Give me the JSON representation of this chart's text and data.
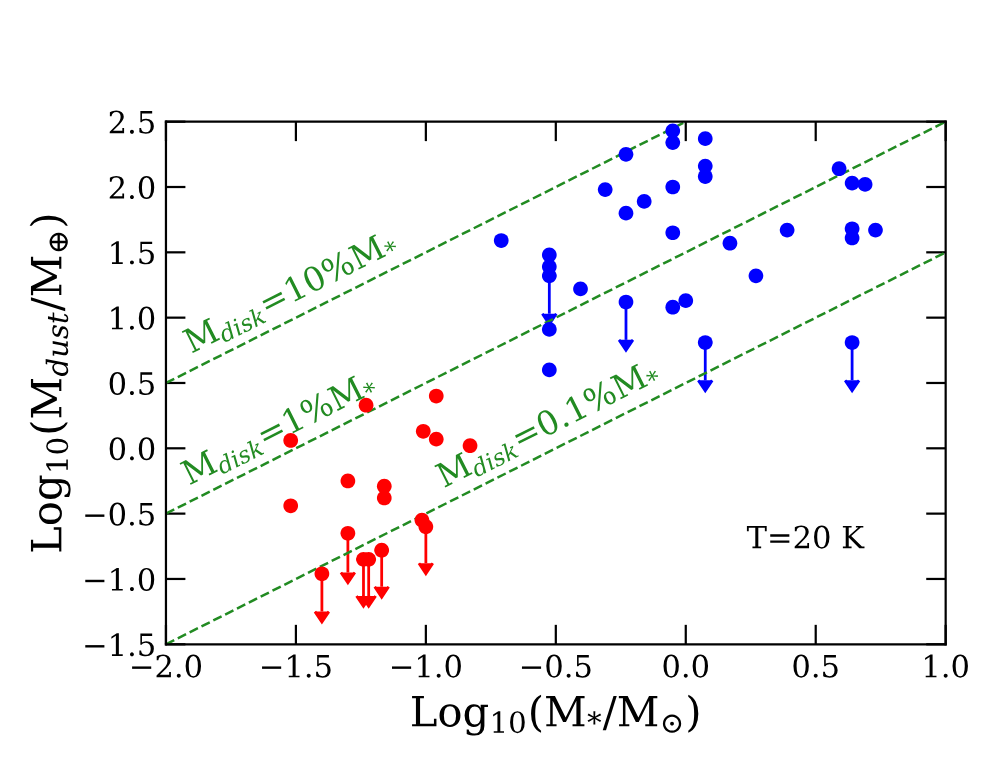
{
  "chart_data": {
    "type": "scatter",
    "xlabel": "Log$_{10}$(M$_{*}$/M$_{⊙}$)",
    "ylabel": "Log$_{10}$(M$_{dust}$/M$_{⊕}$)",
    "xlim": [
      -2.0,
      1.0
    ],
    "xticks": [
      {
        "value": -2.0,
        "label": "−2.0"
      },
      {
        "value": -1.5,
        "label": "−1.5"
      },
      {
        "value": -1.0,
        "label": "−1.0"
      },
      {
        "value": -0.5,
        "label": "−0.5"
      },
      {
        "value": 0.0,
        "label": "0.0"
      },
      {
        "value": 0.5,
        "label": "0.5"
      },
      {
        "value": 1.0,
        "label": "1.0"
      }
    ],
    "ylim": [
      -1.5,
      2.5
    ],
    "yticks": [
      {
        "value": -1.5,
        "label": "−1.5"
      },
      {
        "value": -1.0,
        "label": "−1.0"
      },
      {
        "value": -0.5,
        "label": "−0.5"
      },
      {
        "value": 0.0,
        "label": "0.0"
      },
      {
        "value": 0.5,
        "label": "0.5"
      },
      {
        "value": 1.0,
        "label": "1.0"
      },
      {
        "value": 1.5,
        "label": "1.5"
      },
      {
        "value": 2.0,
        "label": "2.0"
      },
      {
        "value": 2.5,
        "label": "2.5"
      }
    ],
    "grid": false,
    "marker": "circle",
    "series": [
      {
        "color": "#0000ff",
        "x": [
          -0.71,
          -0.525,
          -0.525,
          -0.525,
          -0.525,
          -0.525,
          -0.405,
          -0.31,
          -0.23,
          -0.23,
          -0.23,
          -0.16,
          -0.05,
          -0.05,
          -0.05,
          -0.05,
          -0.05,
          0.0,
          0.075,
          0.075,
          0.075,
          0.075,
          0.17,
          0.27,
          0.39,
          0.59,
          0.64,
          0.69,
          0.64,
          0.64,
          0.64,
          0.73
        ],
        "values": [
          1.59,
          1.48,
          1.39,
          1.32,
          0.91,
          0.6,
          1.22,
          1.98,
          2.25,
          1.8,
          1.12,
          1.89,
          2.43,
          2.34,
          2.0,
          1.65,
          1.08,
          1.13,
          2.37,
          2.16,
          2.08,
          0.81,
          1.57,
          1.32,
          1.67,
          2.14,
          2.03,
          2.02,
          1.68,
          1.61,
          0.81,
          1.67
        ],
        "errors": [
          null,
          null,
          null,
          [
            1.03,
            1.32
          ],
          null,
          null,
          null,
          null,
          null,
          null,
          [
            0.83,
            1.12
          ],
          null,
          null,
          null,
          null,
          null,
          null,
          null,
          null,
          null,
          null,
          [
            0.52,
            0.81
          ],
          null,
          null,
          null,
          null,
          null,
          null,
          null,
          null,
          [
            0.52,
            0.81
          ],
          null
        ]
      },
      {
        "color": "#ff0000",
        "x": [
          -0.96,
          -1.52,
          -1.23,
          -1.01,
          -0.96,
          -0.83,
          -1.52,
          -1.3,
          -1.16,
          -1.16,
          -1.3,
          -1.015,
          -1.0,
          -1.4,
          -1.24,
          -1.22,
          -1.17
        ],
        "values": [
          0.4,
          0.06,
          0.33,
          0.13,
          0.07,
          0.02,
          -0.44,
          -0.25,
          -0.29,
          -0.38,
          -0.65,
          -0.55,
          -0.6,
          -0.96,
          -0.85,
          -0.85,
          -0.78
        ],
        "errors": [
          null,
          null,
          null,
          null,
          null,
          null,
          null,
          null,
          null,
          null,
          [
            -0.95,
            -0.65
          ],
          null,
          [
            -0.88,
            -0.6
          ],
          [
            -1.25,
            -0.96
          ],
          [
            -1.13,
            -0.85
          ],
          [
            -1.13,
            -0.85
          ],
          [
            -1.06,
            -0.78
          ]
        ]
      },
      {
        "type": "line",
        "marker": "none",
        "color": "#228b22",
        "line_style": "dashed",
        "x": [
          -2.0,
          0.0
        ],
        "values": [
          0.5,
          2.5
        ]
      },
      {
        "type": "line",
        "marker": "none",
        "color": "#228b22",
        "line_style": "dashed",
        "x": [
          -2.0,
          1.0
        ],
        "values": [
          -0.5,
          2.5
        ]
      },
      {
        "type": "line",
        "marker": "none",
        "color": "#228b22",
        "line_style": "dashed",
        "x": [
          -2.0,
          1.0
        ],
        "values": [
          -1.5,
          1.5
        ]
      }
    ],
    "annotations": [
      "M$_{disk}$=10%M$_{*}$",
      "M$_{disk}$=1%M$_{*}$",
      "M$_{disk}$=0.1%M$_{*}$",
      "T=20 K"
    ]
  }
}
